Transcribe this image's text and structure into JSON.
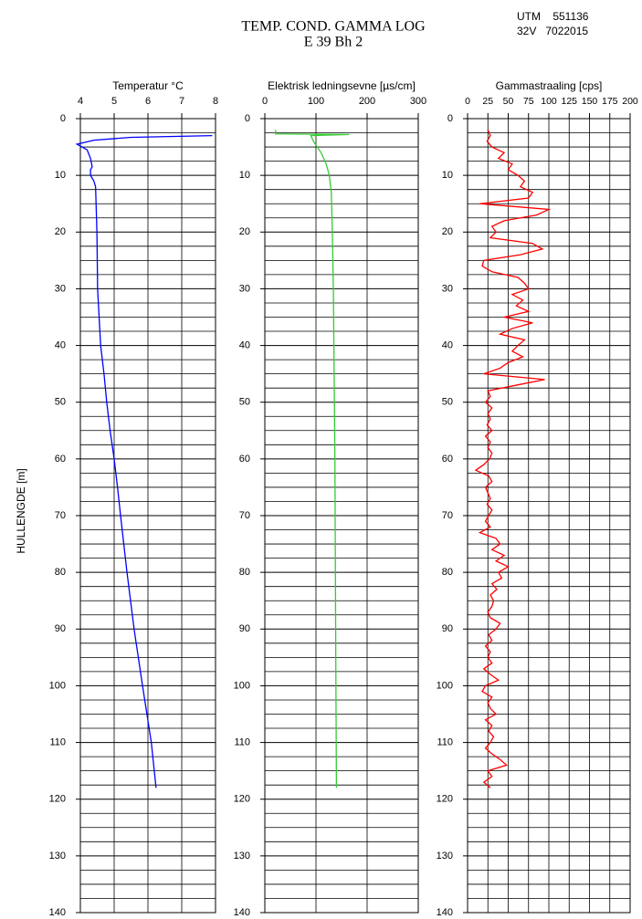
{
  "header": {
    "title": [
      "TEMP. COND. GAMMA LOG",
      "E 39  Bh 2"
    ],
    "utm": [
      "UTM    551136",
      "32V   7022015"
    ]
  },
  "ylabel": "HULLENGDE  [m]",
  "chart_data": [
    {
      "type": "line",
      "xlabel": "Temperatur °C",
      "color": "#0000ff",
      "xlim": [
        4,
        8
      ],
      "xticks": [
        4,
        5,
        6,
        7,
        8
      ],
      "ylim": [
        0,
        140
      ],
      "yticks": [
        0,
        10,
        20,
        30,
        40,
        50,
        60,
        70,
        80,
        90,
        100,
        110,
        120,
        130,
        140
      ],
      "y_inverted": true,
      "grid": true,
      "grid_subdivisions": 4,
      "depth": [
        3,
        3.3,
        3.8,
        4.5,
        5.5,
        7,
        8.5,
        9,
        10,
        11,
        12,
        20,
        30,
        40,
        45,
        50,
        55,
        60,
        65,
        70,
        80,
        90,
        100,
        110,
        118
      ],
      "values": [
        7.9,
        5.5,
        4.4,
        3.9,
        4.2,
        4.3,
        4.35,
        4.3,
        4.3,
        4.4,
        4.45,
        4.49,
        4.51,
        4.6,
        4.7,
        4.78,
        4.88,
        5.0,
        5.1,
        5.19,
        5.38,
        5.59,
        5.84,
        6.1,
        6.24
      ]
    },
    {
      "type": "line",
      "xlabel": "Elektrisk ledningsevne [µs/cm]",
      "color": "#33cc33",
      "xlim": [
        0,
        300
      ],
      "xticks": [
        0,
        100,
        200,
        300
      ],
      "ylim": [
        0,
        140
      ],
      "yticks": [
        0,
        10,
        20,
        30,
        40,
        50,
        60,
        70,
        80,
        90,
        100,
        110,
        120,
        130,
        140
      ],
      "y_inverted": true,
      "grid": true,
      "grid_subdivisions": 4,
      "depth": [
        2.0,
        2.7,
        2.8,
        3.0,
        4,
        6,
        8,
        10,
        13,
        20,
        30,
        40,
        60,
        80,
        100,
        118
      ],
      "values": [
        21,
        21,
        165,
        90,
        95,
        110,
        120,
        126,
        130,
        132,
        134,
        135,
        137,
        138,
        139,
        140
      ]
    },
    {
      "type": "line",
      "xlabel": "Gammastraaling [cps]",
      "color": "#ff0000",
      "xlim": [
        0,
        200
      ],
      "xticks": [
        0,
        25,
        50,
        75,
        100,
        125,
        150,
        175,
        200
      ],
      "ylim": [
        0,
        140
      ],
      "yticks": [
        0,
        10,
        20,
        30,
        40,
        50,
        60,
        70,
        80,
        90,
        100,
        110,
        120,
        130,
        140
      ],
      "y_inverted": true,
      "grid": true,
      "grid_subdivisions": 4,
      "depth": [
        2,
        3,
        4,
        5,
        6,
        7,
        8,
        9,
        10,
        11,
        12,
        13,
        14,
        15,
        16,
        17,
        18,
        19,
        20,
        21,
        22,
        23,
        24,
        25,
        26,
        27,
        28,
        29,
        30,
        31,
        32,
        33,
        34,
        35,
        36,
        37,
        38,
        39,
        40,
        41,
        42,
        43,
        44,
        45,
        46,
        47,
        48,
        49,
        50,
        51,
        52,
        53,
        54,
        55,
        56,
        57,
        58,
        59,
        60,
        61,
        62,
        63,
        64,
        65,
        66,
        67,
        68,
        69,
        70,
        71,
        72,
        73,
        74,
        75,
        76,
        77,
        78,
        79,
        80,
        81,
        82,
        83,
        84,
        85,
        86,
        87,
        88,
        89,
        90,
        91,
        92,
        93,
        94,
        95,
        96,
        97,
        98,
        99,
        100,
        101,
        102,
        103,
        104,
        105,
        106,
        107,
        108,
        109,
        110,
        111,
        112,
        113,
        114,
        115,
        116,
        117,
        118
      ],
      "values": [
        25,
        28,
        24,
        30,
        45,
        38,
        55,
        50,
        62,
        70,
        65,
        80,
        75,
        15,
        100,
        85,
        45,
        30,
        35,
        28,
        80,
        92,
        65,
        20,
        18,
        30,
        62,
        70,
        75,
        55,
        68,
        60,
        75,
        45,
        80,
        55,
        40,
        70,
        62,
        55,
        68,
        50,
        40,
        20,
        95,
        60,
        25,
        28,
        22,
        30,
        25,
        28,
        24,
        30,
        22,
        28,
        25,
        30,
        27,
        20,
        10,
        26,
        30,
        22,
        25,
        28,
        24,
        30,
        26,
        22,
        28,
        15,
        35,
        40,
        30,
        45,
        35,
        50,
        38,
        42,
        30,
        36,
        28,
        32,
        30,
        25,
        28,
        40,
        35,
        26,
        30,
        22,
        28,
        25,
        30,
        20,
        28,
        38,
        22,
        18,
        30,
        25,
        28,
        35,
        22,
        30,
        26,
        32,
        28,
        22,
        30,
        40,
        48,
        25,
        30,
        20,
        28
      ]
    }
  ]
}
